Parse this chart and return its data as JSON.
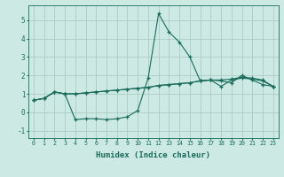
{
  "xlabel": "Humidex (Indice chaleur)",
  "xlim": [
    -0.5,
    23.5
  ],
  "ylim": [
    -1.4,
    5.8
  ],
  "yticks": [
    -1,
    0,
    1,
    2,
    3,
    4,
    5
  ],
  "xticks": [
    0,
    1,
    2,
    3,
    4,
    5,
    6,
    7,
    8,
    9,
    10,
    11,
    12,
    13,
    14,
    15,
    16,
    17,
    18,
    19,
    20,
    21,
    22,
    23
  ],
  "bg_color": "#cce9e4",
  "grid_color": "#aaccc7",
  "line_color": "#1a6b5a",
  "line1_x": [
    0,
    1,
    2,
    3,
    4,
    5,
    6,
    7,
    8,
    9,
    10,
    11,
    12,
    13,
    14,
    15,
    16,
    17,
    18,
    19,
    20,
    21,
    22,
    23
  ],
  "line1_y": [
    0.65,
    0.75,
    1.1,
    1.0,
    -0.4,
    -0.35,
    -0.35,
    -0.4,
    -0.35,
    -0.25,
    0.1,
    1.85,
    5.35,
    4.35,
    3.8,
    3.0,
    1.7,
    1.75,
    1.7,
    1.6,
    2.0,
    1.75,
    1.5,
    1.4
  ],
  "line2_x": [
    0,
    1,
    2,
    3,
    4,
    5,
    6,
    7,
    8,
    9,
    10,
    11,
    12,
    13,
    14,
    15,
    16,
    17,
    18,
    19,
    20,
    21,
    22,
    23
  ],
  "line2_y": [
    0.65,
    0.75,
    1.1,
    1.0,
    1.0,
    1.05,
    1.1,
    1.15,
    1.2,
    1.25,
    1.3,
    1.35,
    1.45,
    1.5,
    1.55,
    1.6,
    1.7,
    1.75,
    1.75,
    1.8,
    1.9,
    1.85,
    1.75,
    1.4
  ],
  "line3_x": [
    0,
    1,
    2,
    3,
    4,
    5,
    6,
    7,
    8,
    9,
    10,
    11,
    12,
    13,
    14,
    15,
    16,
    17,
    18,
    19,
    20,
    21,
    22,
    23
  ],
  "line3_y": [
    0.65,
    0.75,
    1.1,
    1.0,
    1.0,
    1.05,
    1.1,
    1.15,
    1.2,
    1.25,
    1.3,
    1.35,
    1.45,
    1.5,
    1.55,
    1.6,
    1.7,
    1.75,
    1.4,
    1.75,
    1.85,
    1.8,
    1.7,
    1.4
  ]
}
